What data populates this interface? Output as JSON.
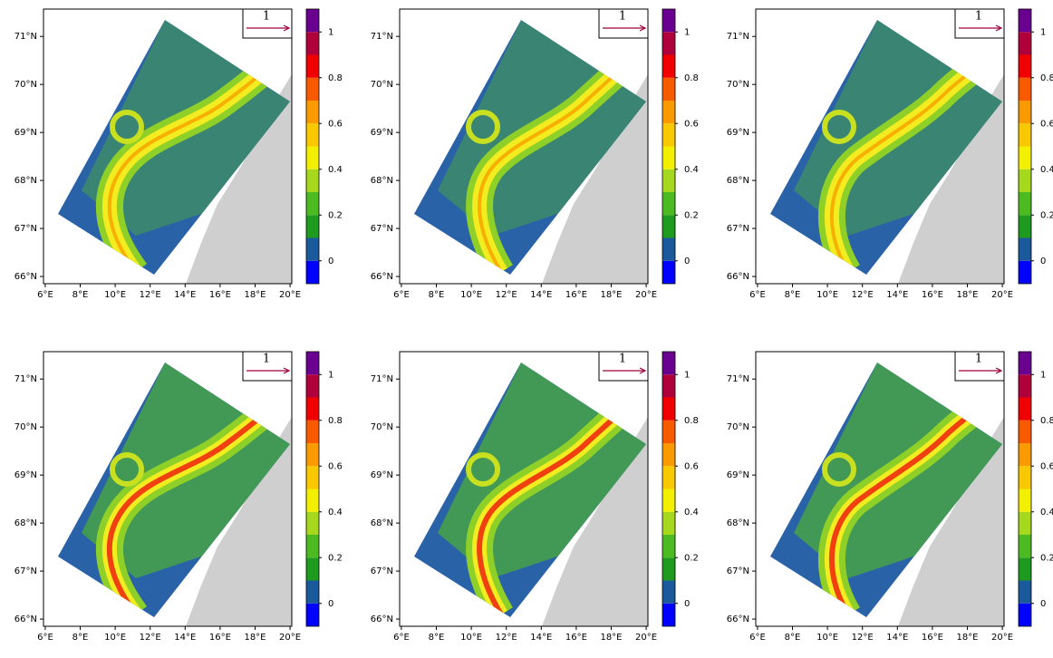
{
  "map_axes": {
    "xlim": [
      5.9,
      20.1
    ],
    "ylim": [
      65.85,
      71.57
    ],
    "xticks": [
      {
        "value": 6,
        "label": "6°E"
      },
      {
        "value": 8,
        "label": "8°E"
      },
      {
        "value": 10,
        "label": "10°E"
      },
      {
        "value": 12,
        "label": "12°E"
      },
      {
        "value": 14,
        "label": "14°E"
      },
      {
        "value": 16,
        "label": "16°E"
      },
      {
        "value": 18,
        "label": "18°E"
      },
      {
        "value": 20,
        "label": "20°E"
      }
    ],
    "yticks": [
      {
        "value": 66,
        "label": "66°N"
      },
      {
        "value": 67,
        "label": "67°N"
      },
      {
        "value": 68,
        "label": "68°N"
      },
      {
        "value": 69,
        "label": "69°N"
      },
      {
        "value": 70,
        "label": "70°N"
      },
      {
        "value": 71,
        "label": "71°N"
      }
    ]
  },
  "colorbar": {
    "lim": [
      -0.1,
      1.1
    ],
    "colors": [
      "#0000ff",
      "#1a5a9c",
      "#1e9a1e",
      "#4cbb22",
      "#a6d81e",
      "#f2f000",
      "#f8c800",
      "#f89a00",
      "#f85a00",
      "#f00000",
      "#b0003c",
      "#6a0090"
    ],
    "ticks": [
      0,
      0.2,
      0.4,
      0.6,
      0.8,
      1
    ]
  },
  "panels": [
    {
      "reference_vector": "1"
    },
    {
      "reference_vector": "1"
    },
    {
      "reference_vector": "1"
    },
    {
      "reference_vector": "1"
    },
    {
      "reference_vector": "1"
    },
    {
      "reference_vector": "1"
    }
  ]
}
